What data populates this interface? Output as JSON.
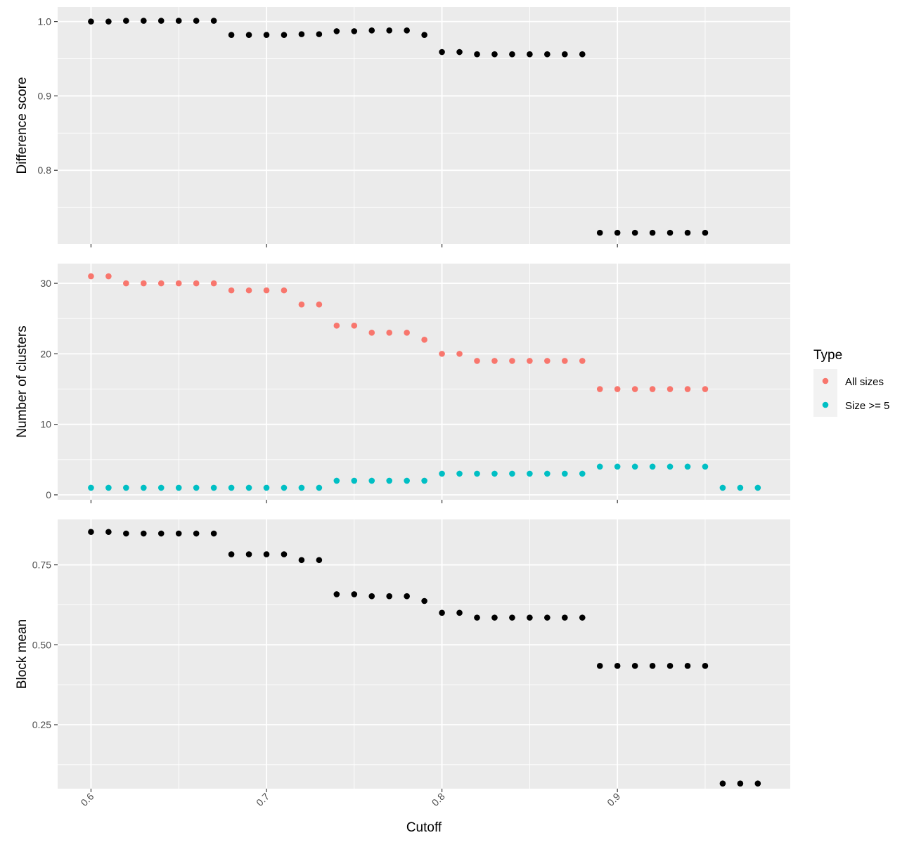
{
  "chart_data": {
    "type": "scatter",
    "xlabel": "Cutoff",
    "x_ticks": [
      "0.6",
      "0.7",
      "0.8",
      "0.9"
    ],
    "x_tick_values": [
      0.6,
      0.7,
      0.8,
      0.9
    ],
    "xlim": [
      0.581,
      0.9985
    ],
    "grid": true,
    "legend": {
      "title": "Type",
      "position": "right",
      "entries": [
        {
          "label": "All sizes",
          "color": "#F8766D"
        },
        {
          "label": "Size >= 5",
          "color": "#00BFC4"
        }
      ]
    },
    "panels": [
      {
        "ylabel": "Difference score",
        "ylim": [
          0.701,
          1.0195
        ],
        "y_ticks": [
          "0.8",
          "0.9",
          "1.0"
        ],
        "y_tick_values": [
          0.8,
          0.9,
          1.0
        ],
        "y_minor": [
          0.75,
          0.85,
          0.95
        ],
        "series": [
          {
            "color": "#000000",
            "x": [
              0.6,
              0.61,
              0.62,
              0.63,
              0.64,
              0.65,
              0.66,
              0.67,
              0.68,
              0.69,
              0.7,
              0.71,
              0.72,
              0.73,
              0.74,
              0.75,
              0.76,
              0.77,
              0.78,
              0.79,
              0.8,
              0.81,
              0.82,
              0.83,
              0.84,
              0.85,
              0.86,
              0.87,
              0.88,
              0.89,
              0.9,
              0.91,
              0.92,
              0.93,
              0.94,
              0.95
            ],
            "y": [
              1.0,
              1.0,
              1.001,
              1.001,
              1.001,
              1.001,
              1.001,
              1.001,
              0.982,
              0.982,
              0.982,
              0.982,
              0.983,
              0.983,
              0.987,
              0.987,
              0.988,
              0.988,
              0.988,
              0.982,
              0.959,
              0.959,
              0.956,
              0.956,
              0.956,
              0.956,
              0.956,
              0.956,
              0.956,
              0.716,
              0.716,
              0.716,
              0.716,
              0.716,
              0.716,
              0.716
            ]
          }
        ]
      },
      {
        "ylabel": "Number of clusters",
        "ylim": [
          -0.7,
          32.8
        ],
        "y_ticks": [
          "0",
          "10",
          "20",
          "30"
        ],
        "y_tick_values": [
          0,
          10,
          20,
          30
        ],
        "y_minor": [
          5,
          15,
          25
        ],
        "series": [
          {
            "name": "All sizes",
            "color": "#F8766D",
            "x": [
              0.6,
              0.61,
              0.62,
              0.63,
              0.64,
              0.65,
              0.66,
              0.67,
              0.68,
              0.69,
              0.7,
              0.71,
              0.72,
              0.73,
              0.74,
              0.75,
              0.76,
              0.77,
              0.78,
              0.79,
              0.8,
              0.81,
              0.82,
              0.83,
              0.84,
              0.85,
              0.86,
              0.87,
              0.88,
              0.89,
              0.9,
              0.91,
              0.92,
              0.93,
              0.94,
              0.95
            ],
            "y": [
              31,
              31,
              30,
              30,
              30,
              30,
              30,
              30,
              29,
              29,
              29,
              29,
              27,
              27,
              24,
              24,
              23,
              23,
              23,
              22,
              20,
              20,
              19,
              19,
              19,
              19,
              19,
              19,
              19,
              15,
              15,
              15,
              15,
              15,
              15,
              15
            ]
          },
          {
            "name": "Size >= 5",
            "color": "#00BFC4",
            "x": [
              0.6,
              0.61,
              0.62,
              0.63,
              0.64,
              0.65,
              0.66,
              0.67,
              0.68,
              0.69,
              0.7,
              0.71,
              0.72,
              0.73,
              0.74,
              0.75,
              0.76,
              0.77,
              0.78,
              0.79,
              0.8,
              0.81,
              0.82,
              0.83,
              0.84,
              0.85,
              0.86,
              0.87,
              0.88,
              0.89,
              0.9,
              0.91,
              0.92,
              0.93,
              0.94,
              0.95,
              0.96,
              0.97,
              0.98
            ],
            "y": [
              1,
              1,
              1,
              1,
              1,
              1,
              1,
              1,
              1,
              1,
              1,
              1,
              1,
              1,
              2,
              2,
              2,
              2,
              2,
              2,
              3,
              3,
              3,
              3,
              3,
              3,
              3,
              3,
              3,
              4,
              4,
              4,
              4,
              4,
              4,
              4,
              1,
              1,
              1
            ]
          }
        ]
      },
      {
        "ylabel": "Block mean",
        "ylim": [
          0.05,
          0.892
        ],
        "y_ticks": [
          "0.25",
          "0.50",
          "0.75"
        ],
        "y_tick_values": [
          0.25,
          0.5,
          0.75
        ],
        "y_minor": [
          0.125,
          0.375,
          0.625
        ],
        "series": [
          {
            "color": "#000000",
            "x": [
              0.6,
              0.61,
              0.62,
              0.63,
              0.64,
              0.65,
              0.66,
              0.67,
              0.68,
              0.69,
              0.7,
              0.71,
              0.72,
              0.73,
              0.74,
              0.75,
              0.76,
              0.77,
              0.78,
              0.79,
              0.8,
              0.81,
              0.82,
              0.83,
              0.84,
              0.85,
              0.86,
              0.87,
              0.88,
              0.89,
              0.9,
              0.91,
              0.92,
              0.93,
              0.94,
              0.95,
              0.96,
              0.97,
              0.98
            ],
            "y": [
              0.853,
              0.853,
              0.848,
              0.848,
              0.848,
              0.848,
              0.848,
              0.848,
              0.783,
              0.783,
              0.783,
              0.783,
              0.765,
              0.765,
              0.658,
              0.658,
              0.652,
              0.652,
              0.652,
              0.637,
              0.6,
              0.6,
              0.585,
              0.585,
              0.585,
              0.585,
              0.585,
              0.585,
              0.585,
              0.434,
              0.434,
              0.434,
              0.434,
              0.434,
              0.434,
              0.434,
              0.066,
              0.066,
              0.066
            ]
          }
        ]
      }
    ]
  }
}
